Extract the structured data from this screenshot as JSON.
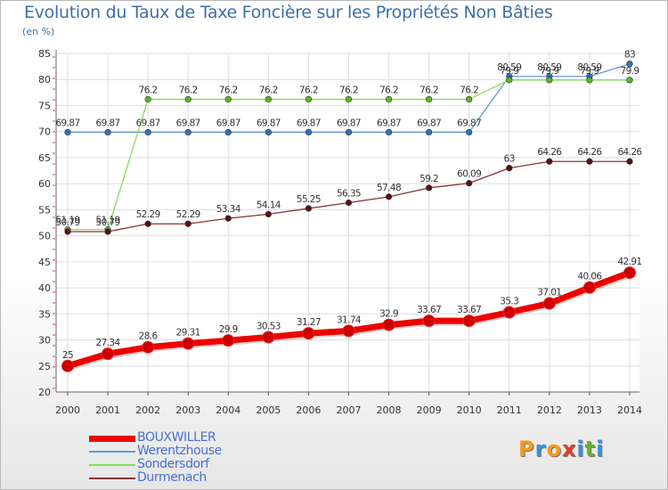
{
  "header": {
    "title": "Evolution du Taux de Taxe Foncière sur les Propriétés Non Bâties",
    "unit": "(en %)"
  },
  "logo": {
    "text": "Proxiti",
    "letters": [
      "P",
      "r",
      "o",
      "x",
      "i",
      "t",
      "i"
    ],
    "colors": [
      "#f39a1e",
      "#3d8fd6",
      "#f39a1e",
      "#e53a2e",
      "#3d8fd6",
      "#66b032",
      "#3d8fd6"
    ]
  },
  "chart_data": {
    "type": "line",
    "title": "Evolution du Taux de Taxe Foncière sur les Propriétés Non Bâties",
    "ylabel": "(en %)",
    "xlabel": "",
    "ylim": [
      20,
      85
    ],
    "yticks": [
      "20",
      "25",
      "30",
      "35",
      "40",
      "45",
      "50",
      "55",
      "60",
      "65",
      "70",
      "75",
      "80",
      "85"
    ],
    "grid": true,
    "categories": [
      "2000",
      "2001",
      "2002",
      "2003",
      "2004",
      "2005",
      "2006",
      "2007",
      "2008",
      "2009",
      "2010",
      "2011",
      "2012",
      "2013",
      "2014"
    ],
    "series": [
      {
        "name": "BOUXWILLER",
        "color": "#ee0000",
        "marker": "#cc0000",
        "values": [
          25,
          27.34,
          28.6,
          29.31,
          29.9,
          30.53,
          31.27,
          31.74,
          32.9,
          33.67,
          33.67,
          35.3,
          37.01,
          40.06,
          42.91
        ],
        "labels": [
          "25",
          "27.34",
          "28.6",
          "29.31",
          "29.9",
          "30.53",
          "31.27",
          "31.74",
          "32.9",
          "33.67",
          "33.67",
          "35.3",
          "37.01",
          "40.06",
          "42.91"
        ]
      },
      {
        "name": "Werentzhouse",
        "color": "#6699cc",
        "marker": "#2a74c0",
        "values": [
          69.87,
          69.87,
          69.87,
          69.87,
          69.87,
          69.87,
          69.87,
          69.87,
          69.87,
          69.87,
          69.87,
          80.59,
          80.59,
          80.59,
          83
        ],
        "labels": [
          "69.87",
          "69.87",
          "69.87",
          "69.87",
          "69.87",
          "69.87",
          "69.87",
          "69.87",
          "69.87",
          "69.87",
          "69.87",
          "80.59",
          "80.59",
          "80.59",
          "83"
        ]
      },
      {
        "name": "Sondersdorf",
        "color": "#88dd55",
        "marker": "#55bb22",
        "values": [
          51.19,
          51.19,
          76.2,
          76.2,
          76.2,
          76.2,
          76.2,
          76.2,
          76.2,
          76.2,
          76.2,
          79.9,
          79.9,
          79.9,
          79.9
        ],
        "labels": [
          "51.19",
          "51.19",
          "76.2",
          "76.2",
          "76.2",
          "76.2",
          "76.2",
          "76.2",
          "76.2",
          "76.2",
          "76.2",
          "79.9",
          "79.9",
          "79.9",
          "79.9"
        ]
      },
      {
        "name": "Durmenach",
        "color": "#883333",
        "marker": "#5a1010",
        "values": [
          50.79,
          50.79,
          52.29,
          52.29,
          53.34,
          54.14,
          55.25,
          56.35,
          57.48,
          59.2,
          60.09,
          63,
          64.26,
          64.26,
          64.26
        ],
        "labels": [
          "50.79",
          "50.79",
          "52.29",
          "52.29",
          "53.34",
          "54.14",
          "55.25",
          "56.35",
          "57.48",
          "59.2",
          "60.09",
          "63",
          "64.26",
          "64.26",
          "64.26"
        ]
      }
    ]
  }
}
